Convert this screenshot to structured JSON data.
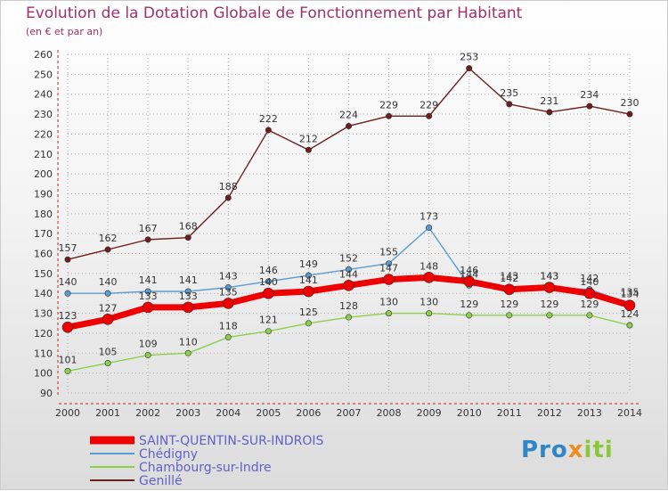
{
  "title": "Evolution de la Dotation Globale de Fonctionnement par Habitant",
  "subtitle": "(en € et par an)",
  "logo": [
    "Pro",
    "x",
    "iti"
  ],
  "colors": {
    "title": "#a0306a",
    "grid": "#aaaaaa",
    "axis_red": "#cc2020"
  },
  "chart_data": {
    "type": "line",
    "title": "Evolution de la Dotation Globale de Fonctionnement par Habitant",
    "subtitle": "(en € et par an)",
    "xlabel": "",
    "ylabel": "",
    "ylim": [
      90,
      260
    ],
    "yticks": [
      90,
      100,
      110,
      120,
      130,
      140,
      150,
      160,
      170,
      180,
      190,
      200,
      210,
      220,
      230,
      240,
      250,
      260
    ],
    "categories": [
      "2000",
      "2001",
      "2002",
      "2003",
      "2004",
      "2005",
      "2006",
      "2007",
      "2008",
      "2009",
      "2010",
      "2011",
      "2012",
      "2013",
      "2014"
    ],
    "grid": true,
    "legend_position": "bottom-left",
    "series": [
      {
        "name": "Genillé",
        "color": "#6b1f1f",
        "values": [
          157,
          162,
          167,
          168,
          188,
          222,
          212,
          224,
          229,
          229,
          253,
          235,
          231,
          234,
          230
        ]
      },
      {
        "name": "Chédigny",
        "color": "#5a9bd0",
        "values": [
          140,
          140,
          141,
          141,
          143,
          146,
          149,
          152,
          155,
          173,
          144,
          143,
          143,
          142,
          135
        ]
      },
      {
        "name": "Chambourg-sur-Indre",
        "color": "#8cd04a",
        "values": [
          101,
          105,
          109,
          110,
          118,
          121,
          125,
          128,
          130,
          130,
          129,
          129,
          129,
          129,
          124
        ]
      },
      {
        "name": "SAINT-QUENTIN-SUR-INDROIS",
        "color": "#ee0000",
        "values": [
          123,
          127,
          133,
          133,
          135,
          140,
          141,
          144,
          147,
          148,
          146,
          142,
          143,
          140,
          134
        ]
      }
    ],
    "legend_order": [
      "SAINT-QUENTIN-SUR-INDROIS",
      "Chédigny",
      "Chambourg-sur-Indre",
      "Genillé"
    ]
  }
}
